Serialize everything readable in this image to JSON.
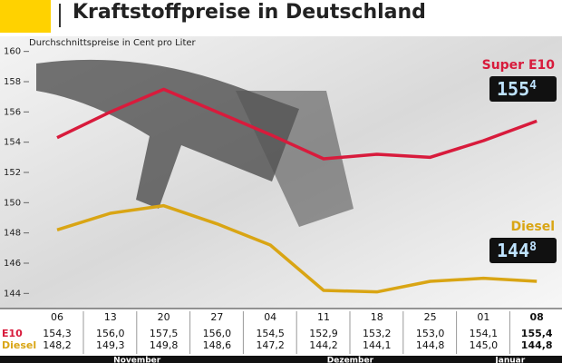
{
  "chart_data": {
    "type": "line",
    "title": "Kraftstoffpreise in Deutschland",
    "y_label": "Durchschnittspreise in Cent pro Liter",
    "categories": [
      "06",
      "13",
      "20",
      "27",
      "04",
      "11",
      "18",
      "25",
      "01",
      "08"
    ],
    "x_groups": [
      "November",
      "November",
      "November",
      "November",
      "Dezember",
      "Dezember",
      "Dezember",
      "Dezember",
      "Januar",
      "Januar"
    ],
    "ylim": [
      143,
      161
    ],
    "yticks": [
      144,
      146,
      148,
      150,
      152,
      154,
      156,
      158,
      160
    ],
    "series": [
      {
        "name": "Super E10",
        "row_label": "E10",
        "color": "#d81b3c",
        "values": [
          154.3,
          156.0,
          157.5,
          156.0,
          154.5,
          152.9,
          153.2,
          153.0,
          154.1,
          155.4
        ],
        "value_labels": [
          "154,3",
          "156,0",
          "157,5",
          "156,0",
          "154,5",
          "152,9",
          "153,2",
          "153,0",
          "154,1",
          "155,4"
        ],
        "display": [
          "155",
          "4"
        ]
      },
      {
        "name": "Diesel",
        "row_label": "Diesel",
        "color": "#d9a514",
        "values": [
          148.2,
          149.3,
          149.8,
          148.6,
          147.2,
          144.2,
          144.1,
          144.8,
          145.0,
          144.8
        ],
        "value_labels": [
          "148,2",
          "149,3",
          "149,8",
          "148,6",
          "147,2",
          "144,2",
          "144,1",
          "144,8",
          "145,0",
          "144,8"
        ],
        "display": [
          "144",
          "8"
        ]
      }
    ]
  }
}
